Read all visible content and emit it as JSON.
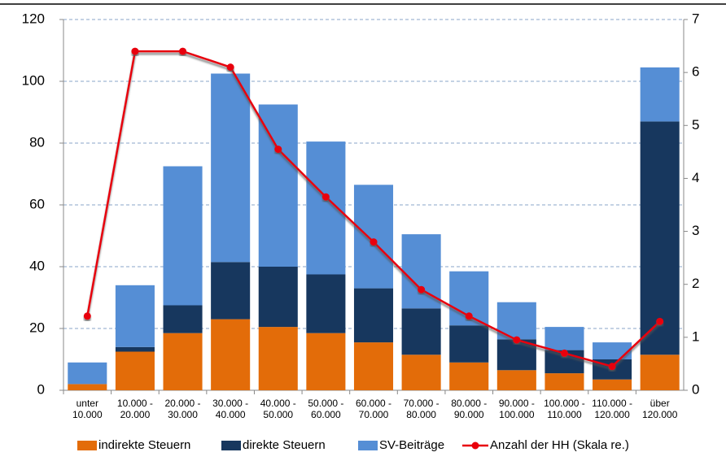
{
  "chart_data": {
    "type": "bar",
    "categories": [
      [
        "unter",
        "10.000"
      ],
      [
        "10.000 -",
        "20.000"
      ],
      [
        "20.000 -",
        "30.000"
      ],
      [
        "30.000 -",
        "40.000"
      ],
      [
        "40.000 -",
        "50.000"
      ],
      [
        "50.000 -",
        "60.000"
      ],
      [
        "60.000 -",
        "70.000"
      ],
      [
        "70.000 -",
        "80.000"
      ],
      [
        "80.000 -",
        "90.000"
      ],
      [
        "90.000 -",
        "100.000"
      ],
      [
        "100.000 -",
        "110.000"
      ],
      [
        "110.000 -",
        "120.000"
      ],
      [
        "über",
        "120.000"
      ]
    ],
    "series": [
      {
        "name": "indirekte Steuern",
        "color": "#e36c09",
        "values": [
          2,
          12.5,
          18.5,
          23,
          20.5,
          18.5,
          15.5,
          11.5,
          9,
          6.5,
          5.5,
          3.5,
          11.5
        ]
      },
      {
        "name": "direkte Steuern",
        "color": "#17375e",
        "values": [
          0,
          1.5,
          9,
          18.5,
          19.5,
          19,
          17.5,
          15,
          12,
          10,
          7.5,
          6.5,
          75.5
        ]
      },
      {
        "name": "SV-Beiträge",
        "color": "#558ed5",
        "values": [
          7,
          20,
          45,
          61,
          52.5,
          43,
          33.5,
          24,
          17.5,
          12,
          7.5,
          5.5,
          17.5
        ]
      },
      {
        "name": "Anzahl der HH (Skala re.)",
        "color": "#e8000b",
        "type": "line",
        "axis": "y2",
        "values": [
          1.4,
          6.4,
          6.4,
          6.1,
          4.55,
          3.65,
          2.8,
          1.9,
          1.4,
          0.95,
          0.7,
          0.45,
          1.3
        ]
      }
    ],
    "stacked": true,
    "ylim": [
      0,
      120
    ],
    "yticks": [
      0,
      20,
      40,
      60,
      80,
      100,
      120
    ],
    "y2lim": [
      0,
      7
    ],
    "y2ticks": [
      0,
      1,
      2,
      3,
      4,
      5,
      6,
      7
    ],
    "grid": true,
    "legend": "bottom"
  }
}
